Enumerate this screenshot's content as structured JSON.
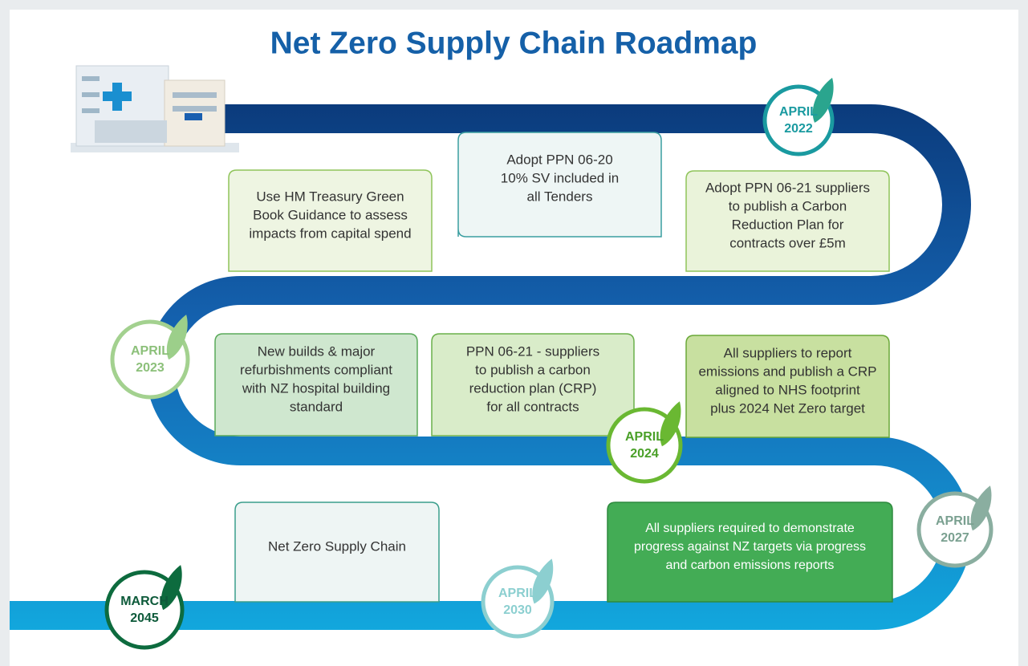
{
  "title": "Net Zero Supply Chain Roadmap",
  "milestones": [
    {
      "month": "APRIL",
      "year": "2022"
    },
    {
      "month": "APRIL",
      "year": "2023"
    },
    {
      "month": "APRIL",
      "year": "2024"
    },
    {
      "month": "APRIL",
      "year": "2027"
    },
    {
      "month": "APRIL",
      "year": "2030"
    },
    {
      "month": "MARCH",
      "year": "2045"
    }
  ],
  "boxes": [
    {
      "lines": [
        "Adopt PPN 06-20",
        "10% SV included in",
        "all Tenders"
      ]
    },
    {
      "lines": [
        "Use HM Treasury Green",
        "Book Guidance to assess",
        "impacts from capital spend"
      ]
    },
    {
      "lines": [
        "Adopt PPN 06-21 suppliers",
        "to publish a Carbon",
        "Reduction Plan for",
        "contracts over £5m"
      ]
    },
    {
      "lines": [
        "New builds & major",
        "refurbishments compliant",
        "with NZ hospital building",
        "standard"
      ]
    },
    {
      "lines": [
        "PPN 06-21 - suppliers",
        "to publish a carbon",
        "reduction plan (CRP)",
        "for all contracts"
      ]
    },
    {
      "lines": [
        "All suppliers to report",
        "emissions and publish a CRP",
        "aligned to NHS footprint",
        "plus 2024 Net Zero target"
      ]
    },
    {
      "lines": [
        "Net Zero Supply Chain"
      ]
    },
    {
      "lines": [
        "All suppliers required to demonstrate",
        "progress against NZ targets via progress",
        "and carbon emissions reports"
      ]
    }
  ]
}
